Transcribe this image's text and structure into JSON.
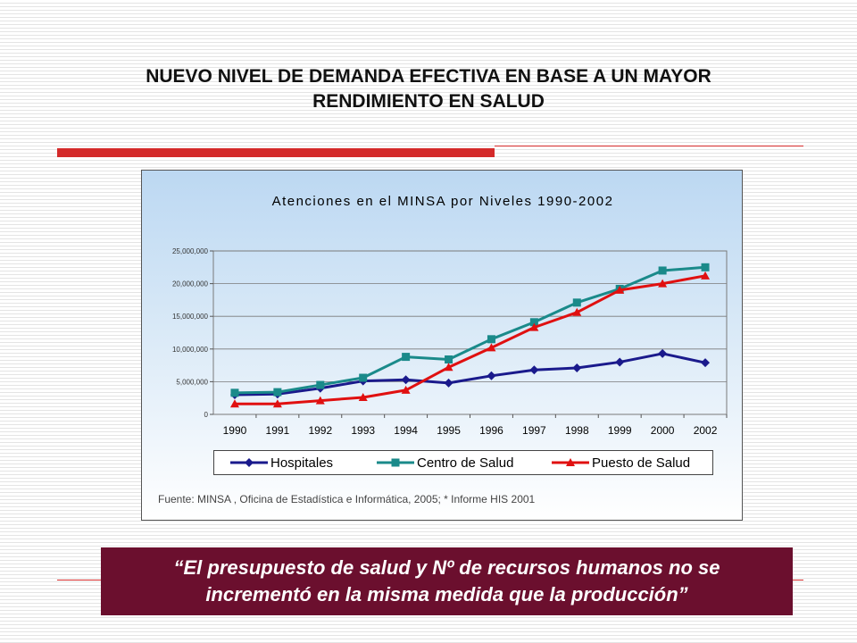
{
  "slide": {
    "title_line1": "NUEVO NIVEL DE DEMANDA EFECTIVA EN BASE A UN MAYOR",
    "title_line2": "RENDIMIENTO  EN SALUD",
    "quote_line1": "“El presupuesto de salud y Nº de recursos humanos no se",
    "quote_line2": "incrementó en la misma medida que  la producción”",
    "colors": {
      "accent_red": "#d42a2a",
      "quote_bg": "#6b0f2e"
    }
  },
  "chart_data": {
    "type": "line",
    "title": "Atenciones en el MINSA por Niveles 1990-2002",
    "source": "Fuente: MINSA , Oficina de Estadística e Informática, 2005; * Informe HIS 2001",
    "categories": [
      "1990",
      "1991",
      "1992",
      "1993",
      "1994",
      "1995",
      "1996",
      "1997",
      "1998",
      "1999",
      "2000",
      "2002"
    ],
    "y_ticks": [
      "0",
      "5,000,000",
      "10,000,000",
      "15,000,000",
      "20,000,000",
      "25,000,000"
    ],
    "ylim": [
      0,
      25000000
    ],
    "grid": true,
    "legend_position": "bottom",
    "series": [
      {
        "name": "Hospitales",
        "color": "#1a1a8c",
        "marker": "diamond",
        "values": [
          3000000,
          3100000,
          4000000,
          5100000,
          5300000,
          4800000,
          5900000,
          6800000,
          7100000,
          8000000,
          9300000,
          7900000
        ]
      },
      {
        "name": "Centro de Salud",
        "color": "#1a8a8a",
        "marker": "square",
        "values": [
          3300000,
          3400000,
          4500000,
          5600000,
          8800000,
          8400000,
          11500000,
          14100000,
          17100000,
          19200000,
          22000000,
          22500000
        ]
      },
      {
        "name": "Puesto de Salud",
        "color": "#e01010",
        "marker": "triangle",
        "values": [
          1600000,
          1600000,
          2100000,
          2600000,
          3700000,
          7200000,
          10200000,
          13300000,
          15600000,
          19000000,
          20000000,
          21200000
        ]
      }
    ]
  }
}
